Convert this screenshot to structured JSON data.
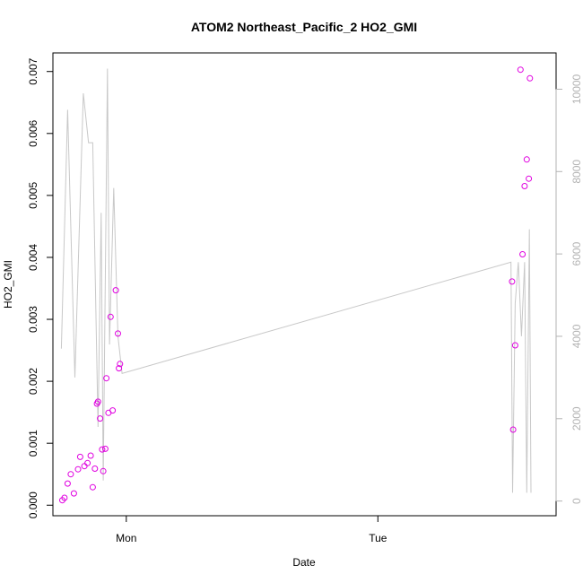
{
  "chart_data": {
    "type": "scatter",
    "title": "ATOM2 Northeast_Pacific_2 HO2_GMI",
    "xlabel": "Date",
    "ylabel": "HO2_GMI",
    "x_ticks": [
      {
        "label": "Mon",
        "value": 24
      },
      {
        "label": "Tue",
        "value": 48
      }
    ],
    "xlim": [
      17,
      65
    ],
    "ylim": [
      -0.00017,
      0.0073
    ],
    "y_ticks": [
      0.0,
      0.001,
      0.002,
      0.003,
      0.004,
      0.005,
      0.006,
      0.007
    ],
    "y_tick_labels": [
      "0.000",
      "0.001",
      "0.002",
      "0.003",
      "0.004",
      "0.005",
      "0.006",
      "0.007"
    ],
    "secondary_ylim": [
      -357,
      10881
    ],
    "secondary_y_ticks": [
      0,
      2000,
      4000,
      6000,
      8000,
      10000
    ],
    "secondary_y_tick_labels": [
      "0",
      "2000",
      "4000",
      "6000",
      "8000",
      "10000"
    ],
    "grid": false,
    "legend": "none",
    "colors": {
      "points": "#e000e0",
      "line": "#c8c8c8",
      "secondary_axis": "#b3b3b3",
      "frame": "#000000"
    },
    "series": [
      {
        "axis": "left",
        "mode": "markers",
        "x": [
          17.9,
          18.1,
          18.4,
          18.7,
          19.0,
          19.4,
          19.6,
          20.0,
          20.3,
          20.6,
          20.8,
          21.0,
          21.2,
          21.3,
          21.5,
          21.7,
          21.8,
          22.0,
          22.1,
          22.3,
          22.5,
          22.7,
          23.0,
          23.2,
          23.3,
          23.4,
          60.8,
          60.9,
          61.1,
          61.6,
          61.8,
          62.0,
          62.2,
          62.4,
          62.5
        ],
        "y": [
          8e-05,
          0.00012,
          0.00035,
          0.0005,
          0.00019,
          0.00058,
          0.00078,
          0.00063,
          0.00068,
          0.0008,
          0.00029,
          0.00059,
          0.00164,
          0.00167,
          0.0014,
          0.0009,
          0.00055,
          0.00091,
          0.00205,
          0.00149,
          0.00304,
          0.00153,
          0.00347,
          0.00277,
          0.00221,
          0.00228,
          0.00361,
          0.00122,
          0.00258,
          0.00703,
          0.00405,
          0.00515,
          0.00558,
          0.00527,
          0.00689
        ]
      },
      {
        "axis": "right",
        "mode": "line",
        "x": [
          17.8,
          18.4,
          19.1,
          19.9,
          20.4,
          20.8,
          21.3,
          21.6,
          21.8,
          22.2,
          22.4,
          22.8,
          23.2,
          23.6,
          60.7,
          60.85,
          61.1,
          61.4,
          61.7,
          62.0,
          62.2,
          62.45,
          62.6
        ],
        "y": [
          3700,
          9500,
          3000,
          9900,
          8700,
          8700,
          1800,
          7000,
          500,
          10500,
          3800,
          7600,
          4000,
          3100,
          5800,
          200,
          4800,
          5800,
          4000,
          5800,
          200,
          6600,
          200
        ]
      }
    ]
  }
}
